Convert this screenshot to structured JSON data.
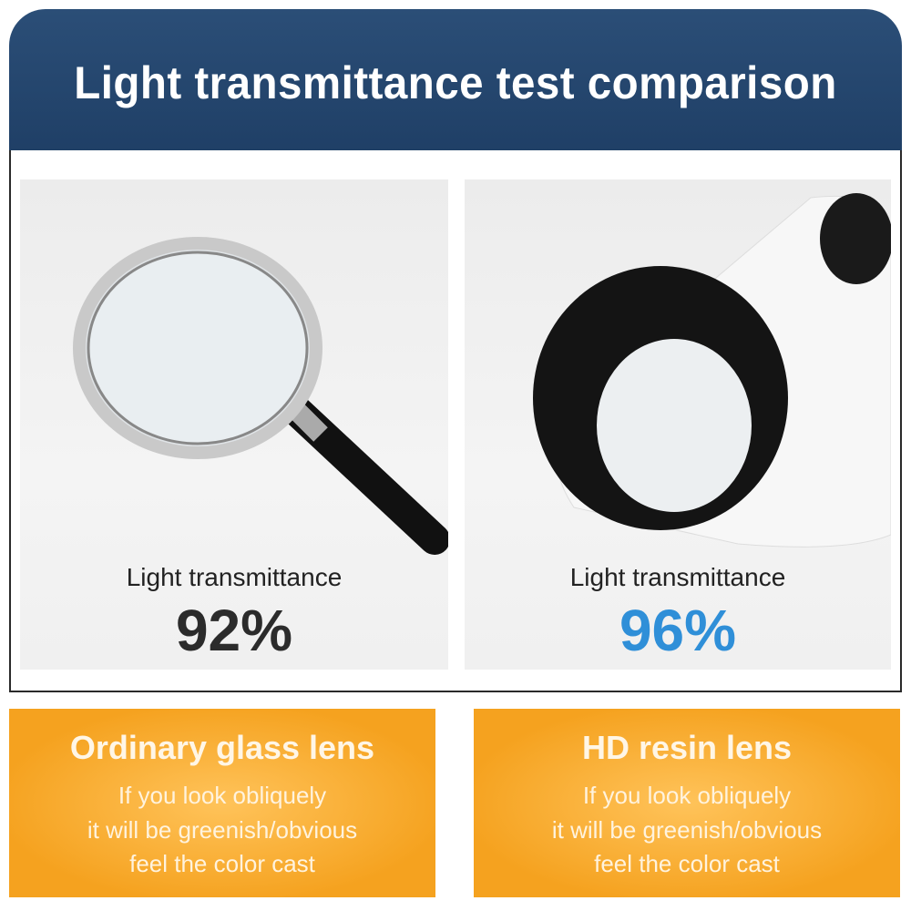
{
  "header": {
    "title": "Light transmittance test comparison"
  },
  "panels": [
    {
      "label": "Light transmittance",
      "value": "92%"
    },
    {
      "label": "Light transmittance",
      "value": "96%"
    }
  ],
  "cards": [
    {
      "title": "Ordinary glass lens",
      "lines": [
        "If you look obliquely",
        "it will be greenish/obvious",
        "feel the color cast"
      ]
    },
    {
      "title": "HD resin lens",
      "lines": [
        "If you look obliquely",
        "it will be greenish/obvious",
        "feel the color cast"
      ]
    }
  ]
}
